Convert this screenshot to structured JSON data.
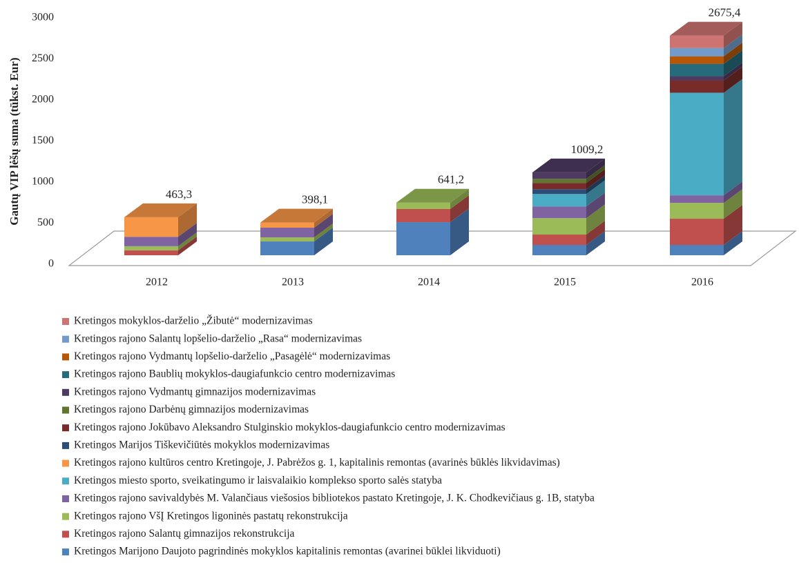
{
  "chart_data": {
    "type": "bar3d_stacked",
    "y_label": "Gautų VIP lėšų suma (tūkst. Eur)",
    "categories": [
      "2012",
      "2013",
      "2014",
      "2015",
      "2016"
    ],
    "ylim": [
      0,
      3000
    ],
    "yticks": [
      0,
      500,
      1000,
      1500,
      2000,
      2500,
      3000
    ],
    "totals": [
      463.3,
      398.1,
      641.2,
      1009.2,
      2675.4
    ],
    "total_labels": [
      "463,3",
      "398,1",
      "641,2",
      "1009,2",
      "2675,4"
    ],
    "series": [
      {
        "name": "Kretingos Marijono Daujoto pagrindinės mokyklos kapitalinis remontas (avarinei būklei likviduoti)",
        "color": "#4f81bd",
        "values": [
          0,
          168,
          403,
          126,
          126
        ]
      },
      {
        "name": "Kretingos rajono Salantų gimnazijos rekonstrukcija",
        "color": "#c0504d",
        "values": [
          60,
          0,
          160,
          126,
          319
        ]
      },
      {
        "name": "Kretingos rajono VšĮ Kretingos ligoninės pastatų rekonstrukcija",
        "color": "#9bbb59",
        "values": [
          50,
          50,
          78.2,
          200,
          193
        ]
      },
      {
        "name": "Kretingos rajono savivaldybės M. Valančiaus viešosios bibliotekos pastato Kretingoje, J. K. Chodkevičiaus g. 1B, statyba",
        "color": "#8064a2",
        "values": [
          115,
          118,
          0,
          143,
          92
        ]
      },
      {
        "name": "Kretingos miesto sporto, sveikatingumo ir laisvalaikio komplekso sporto salės statyba",
        "color": "#4bacc6",
        "values": [
          0,
          0,
          0,
          151,
          1249.4
        ]
      },
      {
        "name": "Kretingos rajono kultūros centro Kretingoje, J. Pabrėžos g. 1, kapitalinis remontas (avarinės būklės likvidavimas)",
        "color": "#f79646",
        "values": [
          238.3,
          62.1,
          0,
          0,
          0
        ]
      },
      {
        "name": "Kretingos Marijos Tiškevičiūtės mokyklos modernizavimas",
        "color": "#2c4d75",
        "values": [
          0,
          0,
          0,
          59,
          0
        ]
      },
      {
        "name": "Kretingos rajono Jokūbavo Aleksandro Stulginskio mokyklos-daugiafunkcio centro modernizavimas",
        "color": "#772c2a",
        "values": [
          0,
          0,
          0,
          76,
          151
        ]
      },
      {
        "name": "Kretingos rajono Darbėnų gimnazijos modernizavimas",
        "color": "#5f7530",
        "values": [
          0,
          0,
          0,
          50,
          0
        ]
      },
      {
        "name": "Kretingos rajono Vydmantų gimnazijos modernizavimas",
        "color": "#4d3b62",
        "values": [
          0,
          0,
          0,
          78.2,
          50
        ]
      },
      {
        "name": "Kretingos rajono Baublių mokyklos-daugiafunkcio centro modernizavimas",
        "color": "#276a7c",
        "values": [
          0,
          0,
          0,
          0,
          151
        ]
      },
      {
        "name": "Kretingos rajono Vydmantų lopšelio-darželio „Pasagėlė“ modernizavimas",
        "color": "#b65708",
        "values": [
          0,
          0,
          0,
          0,
          92
        ]
      },
      {
        "name": "Kretingos rajono Salantų lopšelio-darželio „Rasa“ modernizavimas",
        "color": "#729aca",
        "values": [
          0,
          0,
          0,
          0,
          101
        ]
      },
      {
        "name": "Kretingos mokyklos-darželio „Žibutė“ modernizavimas",
        "color": "#cd7371",
        "values": [
          0,
          0,
          0,
          0,
          151
        ]
      }
    ]
  }
}
